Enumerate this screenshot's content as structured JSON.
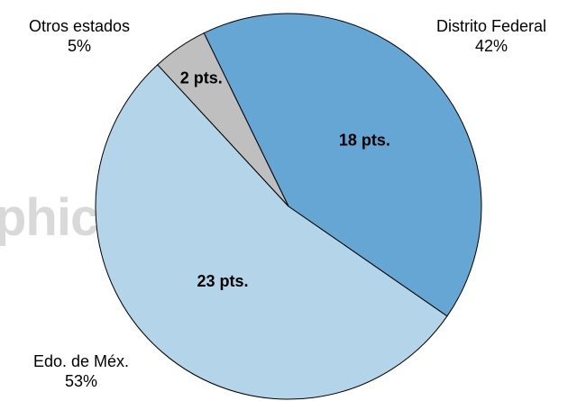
{
  "watermark": "phic",
  "chart_data": {
    "type": "pie",
    "title": "",
    "start_angle_deg": -26,
    "slices": [
      {
        "category": "Distrito Federal",
        "percent_label": "42%",
        "value_label": "18 pts.",
        "value": 18,
        "color": "#65a6d4"
      },
      {
        "category": "Edo. de Méx.",
        "percent_label": "53%",
        "value_label": "23 pts.",
        "value": 23,
        "color": "#b4d4ea"
      },
      {
        "category": "Otros estados",
        "percent_label": "5%",
        "value_label": "2 pts.",
        "value": 2,
        "color": "#bfbfbf"
      }
    ]
  }
}
